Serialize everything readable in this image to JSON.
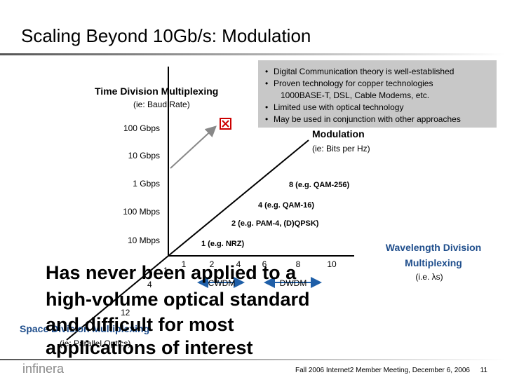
{
  "header": {
    "title": "Scaling Beyond 10Gb/s: Modulation"
  },
  "time_axis": {
    "label": "Time Division Multiplexing",
    "sublabel": "(ie: Baud Rate)",
    "ticks": [
      "100 Gbps",
      "10 Gbps",
      "1 Gbps",
      "100 Mbps",
      "10 Mbps"
    ]
  },
  "modulation_axis": {
    "label": "Modulation",
    "sublabel": "(ie: Bits per Hz)",
    "ticks": [
      "1 (e.g. NRZ)",
      "2 (e.g. PAM-4, (D)QPSK)",
      "4 (e.g. QAM-16)",
      "8 (e.g. QAM-256)"
    ]
  },
  "wavelength_axis": {
    "label_lines": [
      "Wavelength Division",
      "Multiplexing"
    ],
    "sublabel": "(i.e. λs)",
    "ticks": [
      "1",
      "2",
      "4",
      "6",
      "8",
      "10"
    ],
    "ranges": [
      "CWDM",
      "DWDM"
    ]
  },
  "space_axis": {
    "label": "Space Division Multiplexing",
    "sublabel": "(ie: Parallel Optics)",
    "ticks": [
      "1",
      "4",
      "12"
    ]
  },
  "callout": {
    "bullets": [
      "Digital Communication theory is well-established",
      "Proven technology for copper technologies",
      "1000BASE-T, DSL, Cable Modems, etc.",
      "Limited use with optical technology",
      "May be used in conjunction with other approaches"
    ]
  },
  "overlay": {
    "lines": [
      "Has never been applied to a",
      "high-volume optical standard",
      "and difficult for most",
      "applications of interest"
    ]
  },
  "footer": {
    "logo": "infinera",
    "text": "Fall 2006 Internet2 Member Meeting, December 6, 2006",
    "page": "11"
  }
}
